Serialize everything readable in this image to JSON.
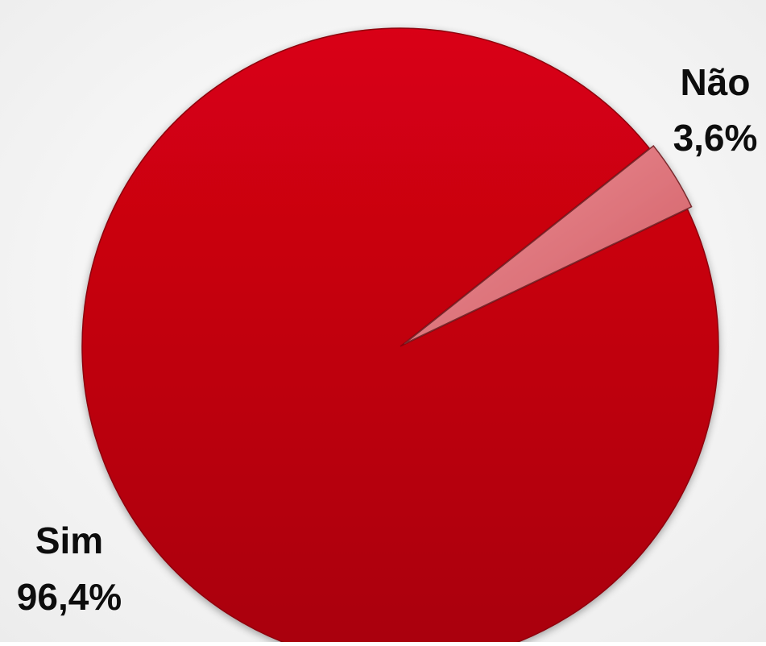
{
  "chart_data": {
    "type": "pie",
    "title": "",
    "slices": [
      {
        "label": "Sim",
        "value_label": "96,4%",
        "value": 96.4,
        "color": "#c8040f"
      },
      {
        "label": "Não",
        "value_label": "3,6%",
        "value": 3.6,
        "color": "#e27a80"
      }
    ],
    "legend": "none",
    "labels": "outside"
  }
}
